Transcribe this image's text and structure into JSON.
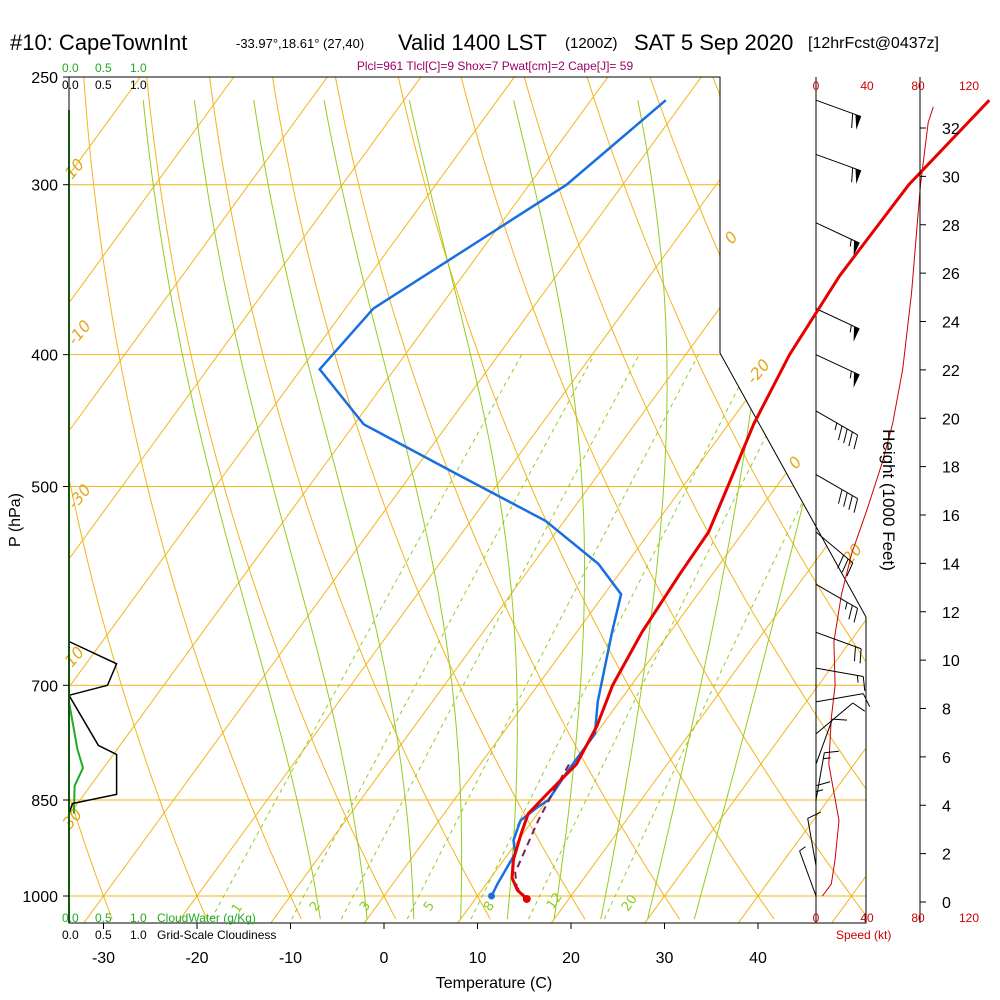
{
  "title": {
    "station": "#10: CapeTownInt",
    "coords": "-33.97°,18.61° (27,40)",
    "valid": "Valid 1400 LST",
    "utc": "(1200Z)",
    "date": "SAT 5 Sep 2020",
    "forecast": "[12hrFcst@0437z]"
  },
  "annotation": "Plcl=961 Tlcl[C]=9 Shox=7 Pwat[cm]=2 Cape[J]= 59",
  "colors": {
    "temperature": "#e60000",
    "dewpoint": "#1a6fe0",
    "parcel": "#7a1f5c",
    "isotherm": "#f2b51d",
    "dry_adiabat": "#f2b51d",
    "moist_adiabat": "#94cc1f",
    "mixing_ratio": "#94cc1f",
    "cloud_water": "#22aa22",
    "cloudiness": "#000000",
    "wind_speed": "#cc0000",
    "pressure_line": "#f2b51d"
  },
  "chart_data": {
    "type": "line",
    "xlabel": "Temperature (C)",
    "ylabel": "P (hPa)",
    "x_ticks": [
      "-30",
      "-20",
      "-10",
      "0",
      "10",
      "20",
      "30",
      "40"
    ],
    "x_tick_values": [
      -30,
      -20,
      -10,
      0,
      10,
      20,
      30,
      40
    ],
    "y_ticks": [
      "250",
      "300",
      "400",
      "500",
      "700",
      "850",
      "1000"
    ],
    "y_tick_values": [
      250,
      300,
      400,
      500,
      700,
      850,
      1000
    ],
    "xlim": [
      -34,
      36
    ],
    "ylim": [
      1010,
      250
    ],
    "y_scale": "log",
    "skew": "isotherms slanted up to the right",
    "series": [
      {
        "name": "temperature",
        "points": [
          [
            15.5,
            1005
          ],
          [
            13.8,
            990
          ],
          [
            12.3,
            970
          ],
          [
            11.0,
            940
          ],
          [
            9.8,
            900
          ],
          [
            9.0,
            870
          ],
          [
            9.5,
            840
          ],
          [
            10.3,
            800
          ],
          [
            9.5,
            750
          ],
          [
            8.0,
            700
          ],
          [
            7.0,
            640
          ],
          [
            6.5,
            580
          ],
          [
            6.3,
            540
          ],
          [
            4.8,
            500
          ],
          [
            2.7,
            450
          ],
          [
            1.1,
            400
          ],
          [
            0.3,
            350
          ],
          [
            0.6,
            300
          ],
          [
            2.6,
            260
          ]
        ]
      },
      {
        "name": "dewpoint",
        "points": [
          [
            11.5,
            1000
          ],
          [
            11.2,
            980
          ],
          [
            10.7,
            930
          ],
          [
            9.5,
            910
          ],
          [
            8.7,
            880
          ],
          [
            9.5,
            860
          ],
          [
            10.1,
            850
          ],
          [
            9.9,
            810
          ],
          [
            9.9,
            760
          ],
          [
            7.7,
            720
          ],
          [
            3.8,
            640
          ],
          [
            1.8,
            600
          ],
          [
            -3.0,
            570
          ],
          [
            -12.0,
            530
          ],
          [
            -25.0,
            490
          ],
          [
            -39.0,
            450
          ],
          [
            -48.0,
            410
          ],
          [
            -47.0,
            370
          ],
          [
            -41.0,
            330
          ],
          [
            -36.0,
            300
          ],
          [
            -32.0,
            260
          ]
        ]
      },
      {
        "name": "parcel",
        "points": [
          [
            15.5,
            1005
          ],
          [
            13.5,
            985
          ],
          [
            12.2,
            961
          ],
          [
            11.4,
            920
          ],
          [
            10.6,
            880
          ],
          [
            10.0,
            840
          ],
          [
            9.5,
            800
          ]
        ]
      }
    ],
    "isotherm_labels": [
      "10",
      "0",
      "-10",
      "-20",
      "-30",
      "0",
      "10",
      "20",
      "30"
    ],
    "mixing_ratio_labels": [
      "1",
      "2",
      "3",
      "5",
      "8",
      "12",
      "20"
    ],
    "cloud_water": {
      "label": "CloudWater (g/Kg)",
      "ticks": [
        "0.0",
        "0.5",
        "1.0"
      ],
      "points": [
        [
          0.0,
          720
        ],
        [
          0.12,
          780
        ],
        [
          0.2,
          805
        ],
        [
          0.08,
          830
        ],
        [
          0.07,
          870
        ]
      ]
    },
    "cloudiness": {
      "label": "Grid-Scale Cloudiness",
      "ticks": [
        "0.0",
        "0.5",
        "1.0"
      ],
      "points": [
        [
          0.0,
          650
        ],
        [
          0.68,
          675
        ],
        [
          0.55,
          700
        ],
        [
          0.0,
          712
        ],
        [
          0.42,
          775
        ],
        [
          0.68,
          787
        ],
        [
          0.68,
          842
        ],
        [
          0.05,
          855
        ],
        [
          0.0,
          870
        ]
      ]
    },
    "wind_speed": {
      "label": "Speed (kt)",
      "ticks": [
        "0",
        "40",
        "80",
        "120"
      ],
      "points": [
        [
          5,
          1000
        ],
        [
          12,
          980
        ],
        [
          15,
          940
        ],
        [
          18,
          880
        ],
        [
          10,
          800
        ],
        [
          12,
          740
        ],
        [
          15,
          700
        ],
        [
          14,
          650
        ],
        [
          20,
          600
        ],
        [
          28,
          560
        ],
        [
          40,
          520
        ],
        [
          52,
          480
        ],
        [
          60,
          450
        ],
        [
          68,
          410
        ],
        [
          75,
          360
        ],
        [
          82,
          300
        ],
        [
          88,
          270
        ],
        [
          92,
          263
        ]
      ]
    },
    "height_axis": {
      "label": "Height (1000 Feet)",
      "ticks": [
        "0",
        "2",
        "4",
        "6",
        "8",
        "10",
        "12",
        "14",
        "16",
        "18",
        "20",
        "22",
        "24",
        "26",
        "28",
        "30",
        "32"
      ],
      "tick_values": [
        0,
        2,
        4,
        6,
        8,
        10,
        12,
        14,
        16,
        18,
        20,
        22,
        24,
        26,
        28,
        30,
        32
      ]
    },
    "wind_barbs": [
      {
        "p": 260,
        "dir": 290,
        "spd": 60
      },
      {
        "p": 285,
        "dir": 290,
        "spd": 60
      },
      {
        "p": 320,
        "dir": 295,
        "spd": 55
      },
      {
        "p": 370,
        "dir": 295,
        "spd": 55
      },
      {
        "p": 400,
        "dir": 295,
        "spd": 55
      },
      {
        "p": 440,
        "dir": 300,
        "spd": 45
      },
      {
        "p": 490,
        "dir": 300,
        "spd": 40
      },
      {
        "p": 540,
        "dir": 310,
        "spd": 30
      },
      {
        "p": 590,
        "dir": 300,
        "spd": 25
      },
      {
        "p": 640,
        "dir": 290,
        "spd": 20
      },
      {
        "p": 680,
        "dir": 280,
        "spd": 15
      },
      {
        "p": 720,
        "dir": 260,
        "spd": 10
      },
      {
        "p": 760,
        "dir": 230,
        "spd": 10
      },
      {
        "p": 800,
        "dir": 200,
        "spd": 10
      },
      {
        "p": 850,
        "dir": 190,
        "spd": 15
      },
      {
        "p": 900,
        "dir": 180,
        "spd": 15
      },
      {
        "p": 950,
        "dir": 170,
        "spd": 10
      },
      {
        "p": 1000,
        "dir": 160,
        "spd": 5
      }
    ]
  }
}
